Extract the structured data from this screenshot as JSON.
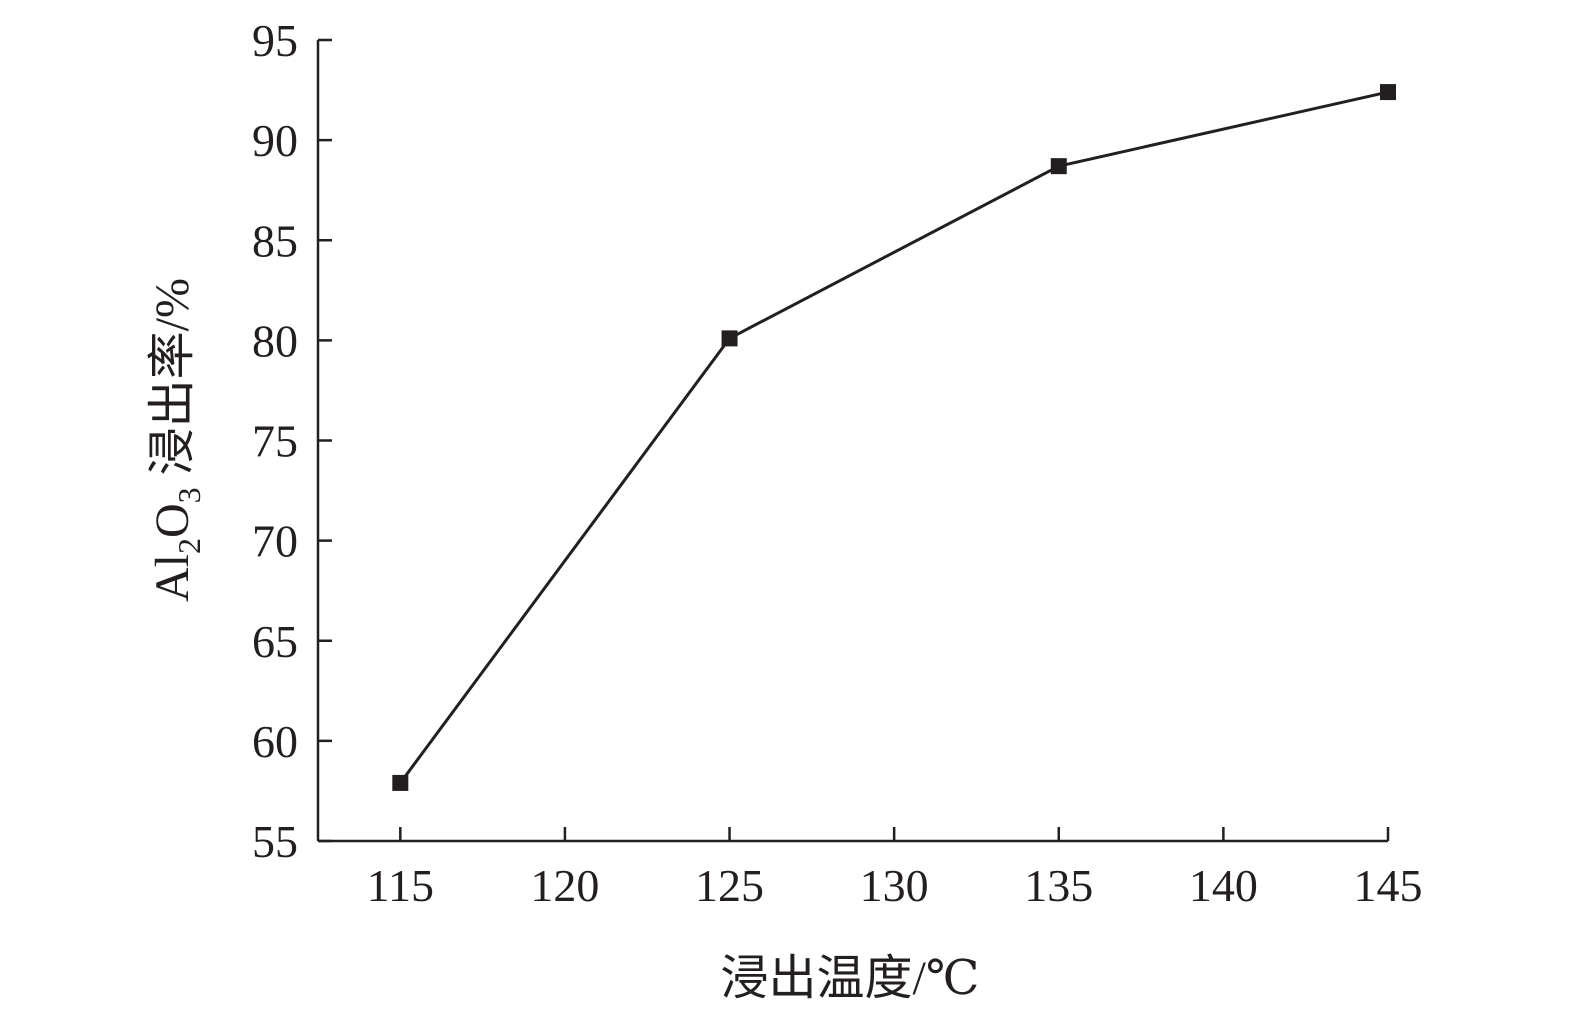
{
  "chart_data": {
    "type": "line",
    "xlabel": "浸出温度/℃",
    "ylabel": {
      "prefix": "Al",
      "sub1": "2",
      "mid": "O",
      "sub2": "3",
      "suffix": " 浸出率/%"
    },
    "xlim": [
      112.5,
      145
    ],
    "ylim": [
      55,
      95
    ],
    "xticks": [
      115,
      120,
      125,
      130,
      135,
      140,
      145
    ],
    "yticks": [
      55,
      60,
      65,
      70,
      75,
      80,
      85,
      90,
      95
    ],
    "grid": false,
    "series": [
      {
        "marker": "square",
        "color": "#231f20",
        "x": [
          115,
          125,
          135,
          145
        ],
        "y": [
          57.9,
          80.1,
          88.7,
          92.4
        ]
      }
    ]
  }
}
